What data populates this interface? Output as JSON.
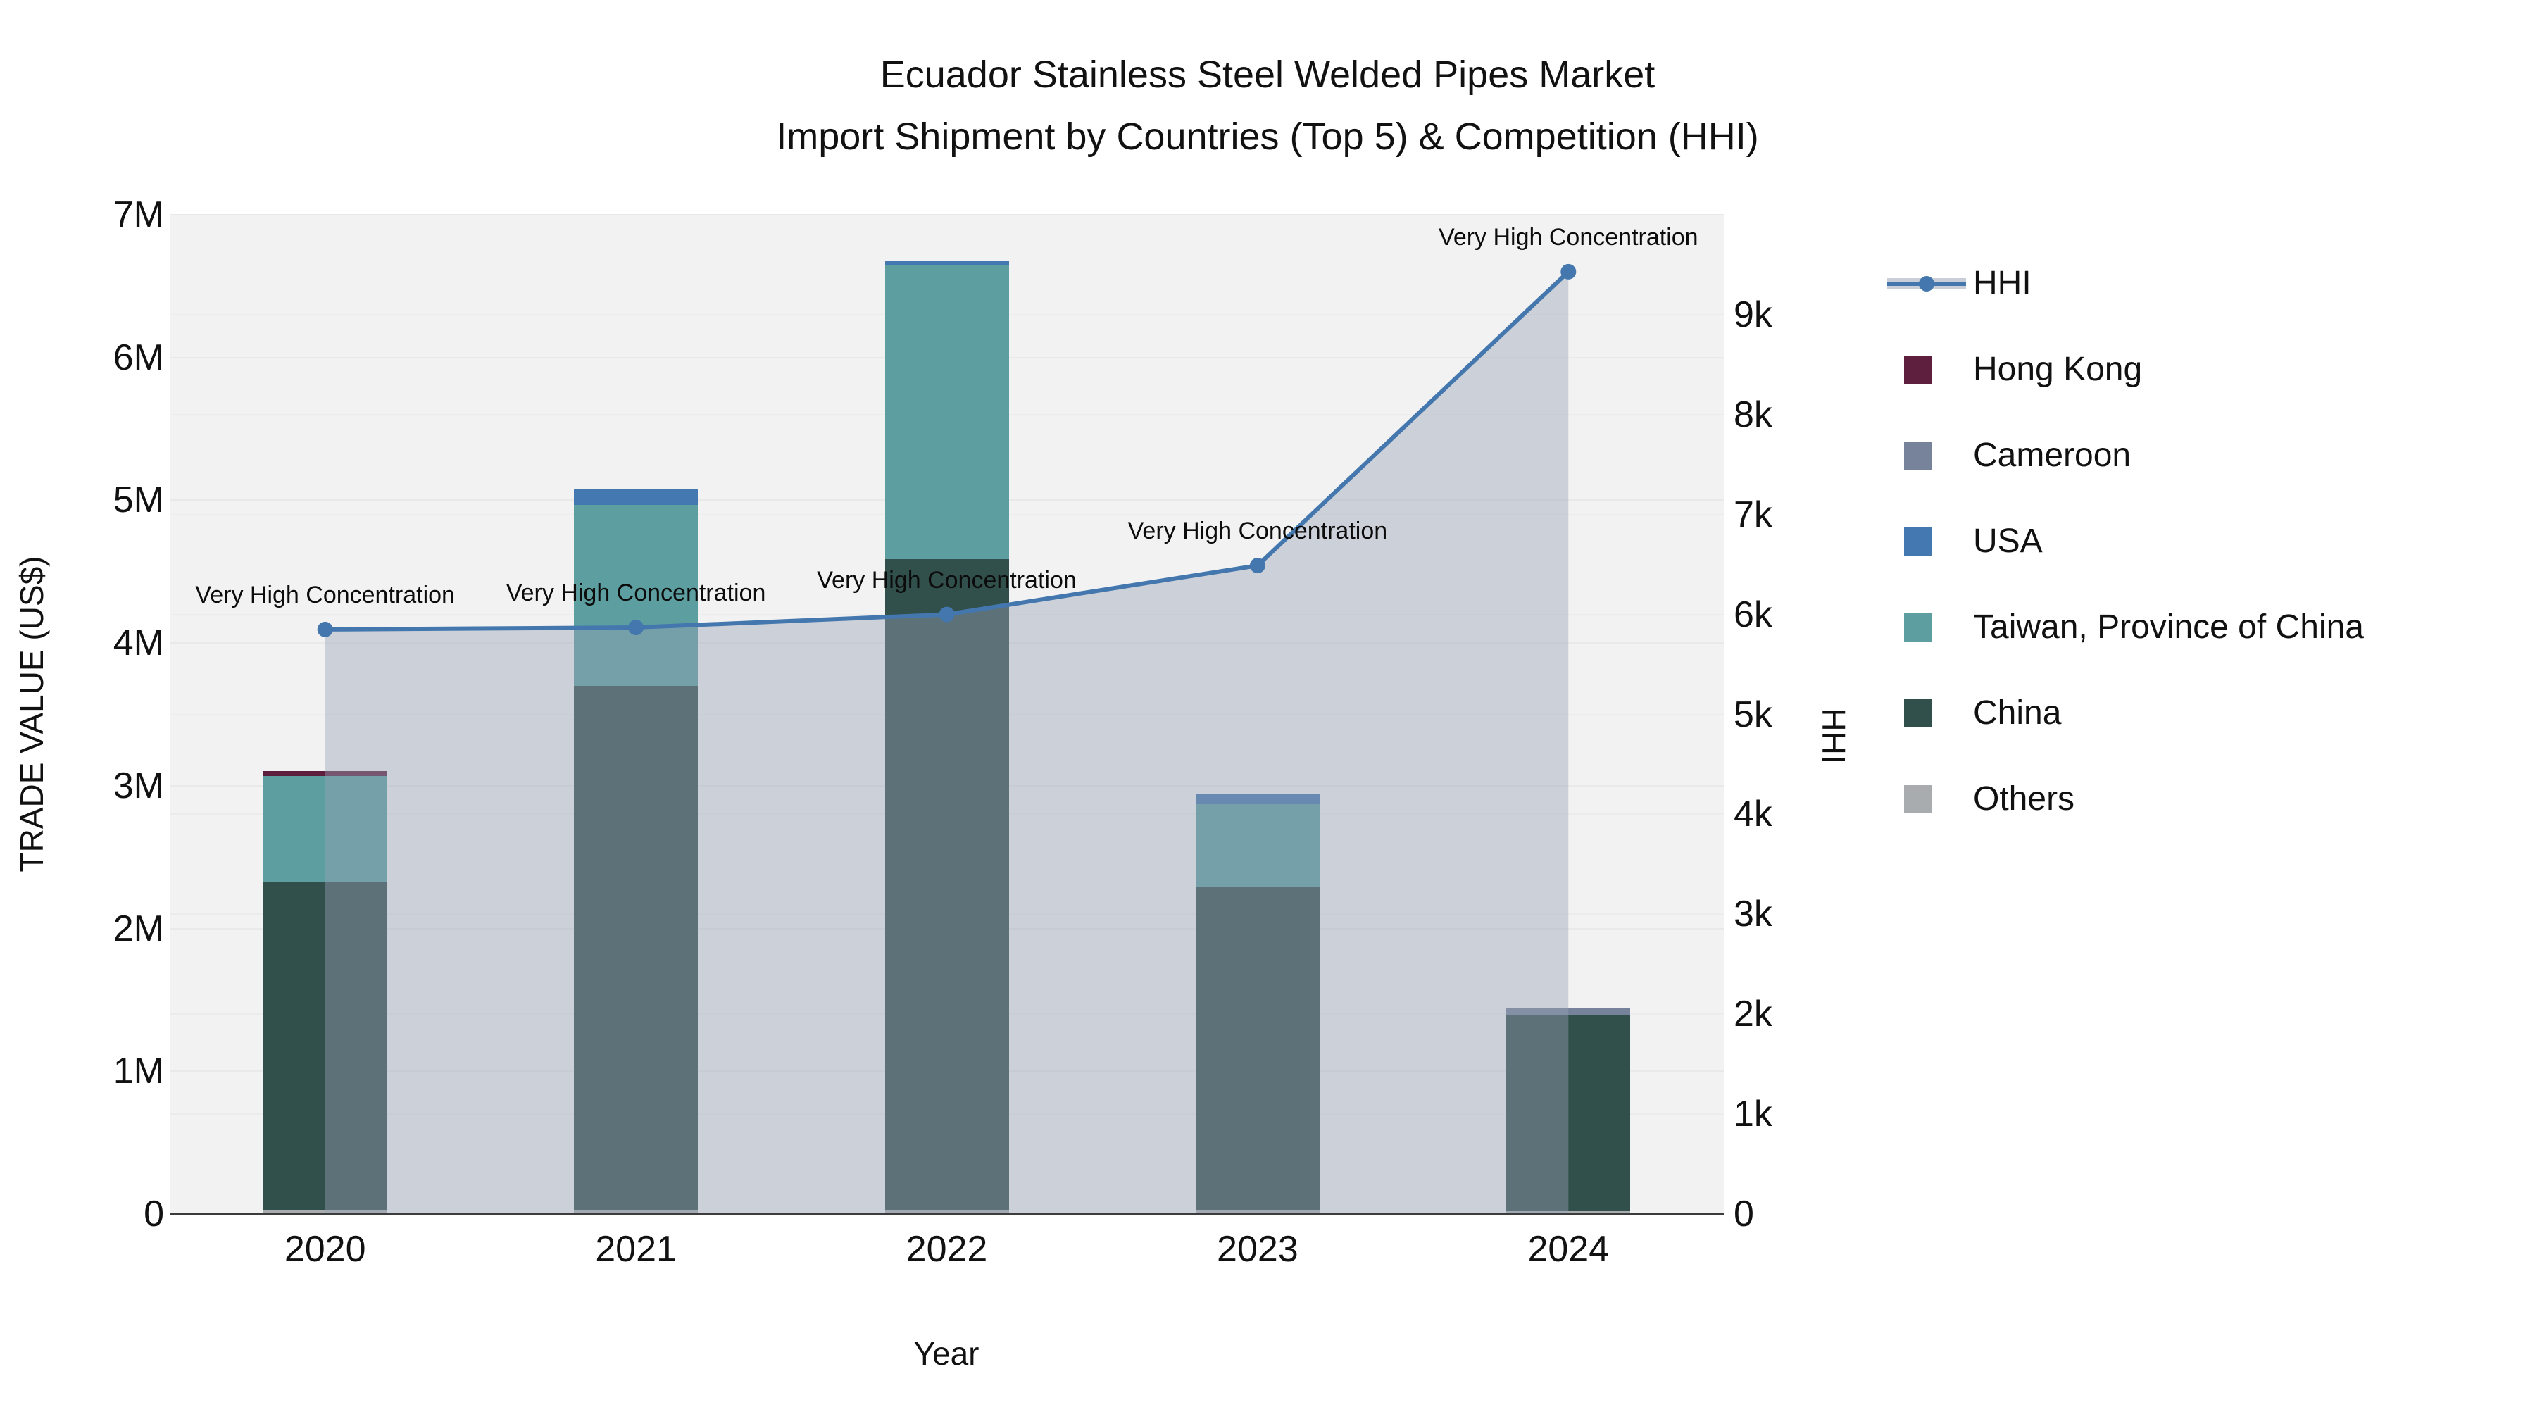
{
  "title": {
    "line1": "Ecuador Stainless Steel Welded Pipes Market",
    "line2": "Import Shipment by Countries (Top 5) & Competition (HHI)"
  },
  "axes": {
    "x": {
      "title": "Year",
      "categories": [
        "2020",
        "2021",
        "2022",
        "2023",
        "2024"
      ]
    },
    "left": {
      "title": "TRADE VALUE (US$)",
      "tick_labels": [
        "0",
        "1M",
        "2M",
        "3M",
        "4M",
        "5M",
        "6M",
        "7M"
      ],
      "max": 7000000
    },
    "right": {
      "title": "HHI",
      "tick_labels": [
        "0",
        "1k",
        "2k",
        "3k",
        "4k",
        "5k",
        "6k",
        "7k",
        "8k",
        "9k"
      ],
      "max": 10000
    }
  },
  "legend": {
    "items": [
      {
        "label": "HHI",
        "type": "line",
        "color": "#4377AE"
      },
      {
        "label": "Hong Kong",
        "type": "square",
        "color": "#5E1F3E"
      },
      {
        "label": "Cameroon",
        "type": "square",
        "color": "#76839B"
      },
      {
        "label": "USA",
        "type": "square",
        "color": "#4478B0"
      },
      {
        "label": "Taiwan, Province of China",
        "type": "square",
        "color": "#5D9FA0"
      },
      {
        "label": "China",
        "type": "square",
        "color": "#31504C"
      },
      {
        "label": "Others",
        "type": "square",
        "color": "#A9ACAF"
      }
    ]
  },
  "chart_data": {
    "type": "combo stacked-bar + line-area",
    "categories": [
      "2020",
      "2021",
      "2022",
      "2023",
      "2024"
    ],
    "bar_value_unit": "US$ trade value, left axis 0-7M",
    "stack_order_bottom_to_top": [
      "Others",
      "China",
      "Taiwan, Province of China",
      "USA",
      "Cameroon",
      "Hong Kong"
    ],
    "series": [
      {
        "name": "Others",
        "type": "bar",
        "color": "#A9ACAF",
        "values": [
          30000,
          30000,
          30000,
          30000,
          25000
        ]
      },
      {
        "name": "China",
        "type": "bar",
        "color": "#31504C",
        "values": [
          2300000,
          3670000,
          4560000,
          2260000,
          1370000
        ]
      },
      {
        "name": "Taiwan, Province of China",
        "type": "bar",
        "color": "#5D9FA0",
        "values": [
          740000,
          1270000,
          2060000,
          580000,
          0
        ]
      },
      {
        "name": "USA",
        "type": "bar",
        "color": "#4478B0",
        "values": [
          0,
          113000,
          22000,
          69000,
          0
        ]
      },
      {
        "name": "Cameroon",
        "type": "bar",
        "color": "#76839B",
        "values": [
          0,
          0,
          0,
          0,
          44000
        ]
      },
      {
        "name": "Hong Kong",
        "type": "bar",
        "color": "#5E1F3E",
        "values": [
          35000,
          0,
          0,
          0,
          0
        ]
      }
    ],
    "bar_totals": [
      3105000,
      5083000,
      6672000,
      2939000,
      1439000
    ],
    "line_series": {
      "name": "HHI",
      "axis": "right",
      "color": "#4377AE",
      "area_fill": "rgba(152,162,180,0.42)",
      "values": [
        5850,
        5870,
        6000,
        6490,
        9430
      ],
      "point_annotations": [
        "Very High Concentration",
        "Very High Concentration",
        "Very High Concentration",
        "Very High Concentration",
        "Very High Concentration"
      ]
    },
    "ylim_left": [
      0,
      7000000
    ],
    "ylim_right": [
      0,
      10000
    ],
    "grid": "horizontal gridlines for both axes, very light",
    "legend_position": "right"
  }
}
